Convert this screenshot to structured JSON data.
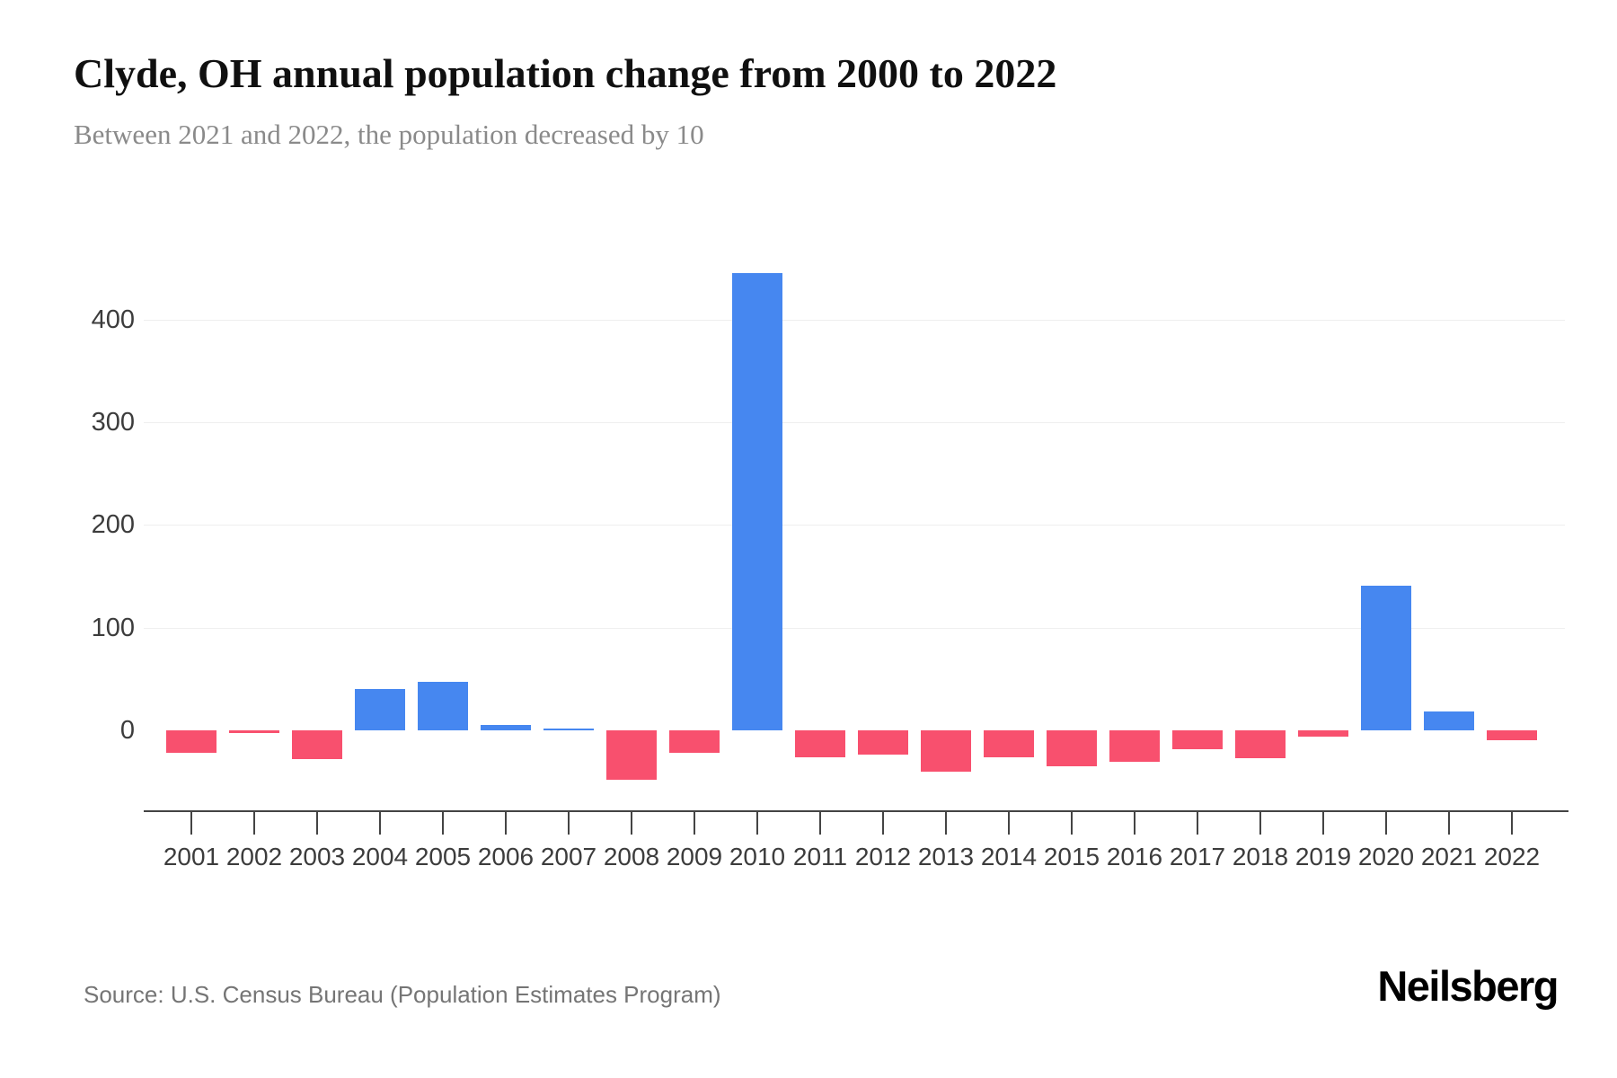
{
  "header": {
    "title": "Clyde, OH annual population change from 2000 to 2022",
    "subtitle": "Between 2021 and 2022, the population decreased by 10"
  },
  "footer": {
    "source": "Source: U.S. Census Bureau (Population Estimates Program)",
    "brand": "Neilsberg"
  },
  "chart_data": {
    "type": "bar",
    "title": "Clyde, OH annual population change from 2000 to 2022",
    "subtitle": "Between 2021 and 2022, the population decreased by 10",
    "categories": [
      "2001",
      "2002",
      "2003",
      "2004",
      "2005",
      "2006",
      "2007",
      "2008",
      "2009",
      "2010",
      "2011",
      "2012",
      "2013",
      "2014",
      "2015",
      "2016",
      "2017",
      "2018",
      "2019",
      "2020",
      "2021",
      "2022"
    ],
    "values": [
      -22,
      -3,
      -28,
      40,
      47,
      5,
      2,
      -48,
      -22,
      445,
      -26,
      -24,
      -40,
      -26,
      -35,
      -31,
      -18,
      -27,
      -6,
      141,
      18,
      -10
    ],
    "xlabel": "",
    "ylabel": "",
    "yticks": [
      0,
      100,
      200,
      300,
      400
    ],
    "ylim": [
      -60,
      460
    ],
    "grid": true,
    "legend": false,
    "colors": {
      "positive": "#4687F0",
      "negative": "#F8506E"
    }
  }
}
